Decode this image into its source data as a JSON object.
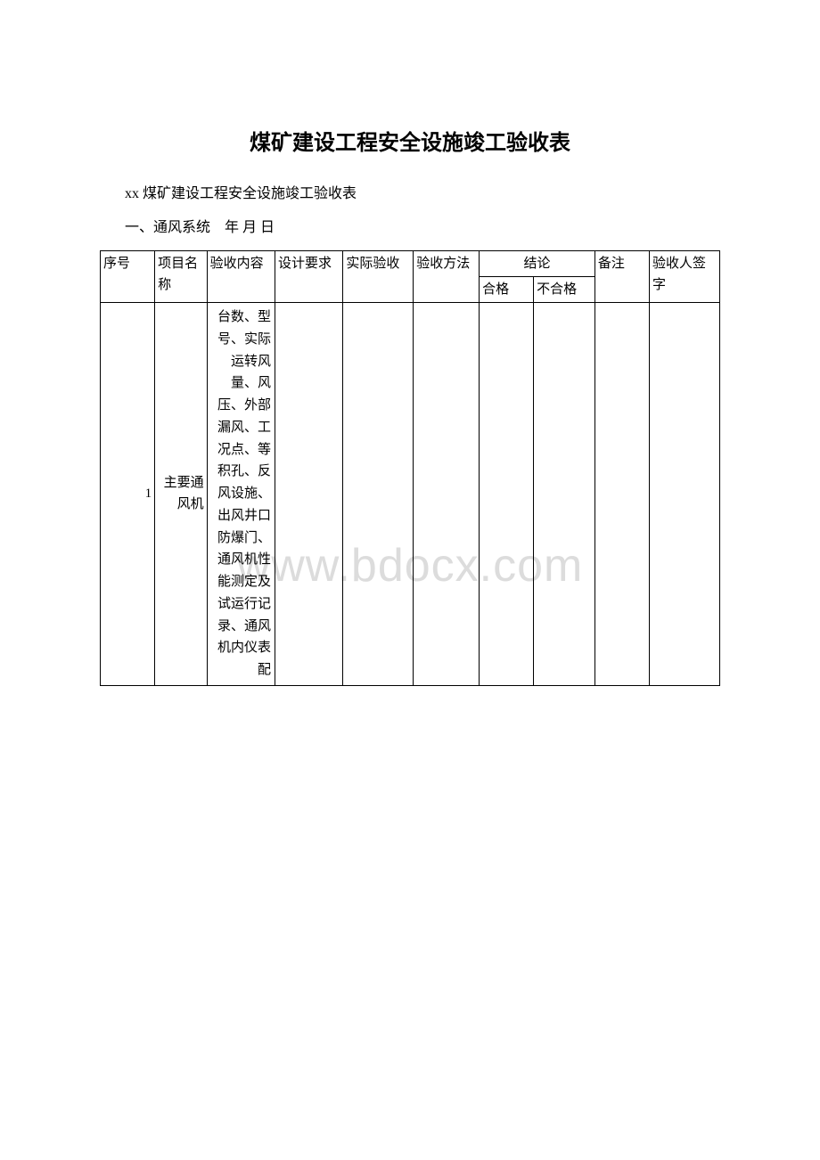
{
  "document": {
    "title": "煤矿建设工程安全设施竣工验收表",
    "subtitle": "xx 煤矿建设工程安全设施竣工验收表",
    "section_label": "一、通风系统　年 月 日",
    "watermark": "www.bdocx.com"
  },
  "table": {
    "headers": {
      "seq": "序号",
      "name": "项目名称",
      "content": "验收内容",
      "req": "设计要求",
      "actual": "实际验收",
      "method": "验收方法",
      "conclusion": "结论",
      "pass": "合格",
      "fail": "不合格",
      "note": "备注",
      "sign": "验收人签字"
    },
    "rows": [
      {
        "seq": "1",
        "name": "主要通风机",
        "content": "台数、型号、实际运转风量、风压、外部漏风、工况点、等积孔、反风设施、出风井口防爆门、通风机性能测定及试运行记录、通风机内仪表配",
        "req": "",
        "actual": "",
        "method": "",
        "pass": "",
        "fail": "",
        "note": "",
        "sign": ""
      }
    ]
  },
  "styles": {
    "background_color": "#ffffff",
    "text_color": "#000000",
    "border_color": "#000000",
    "watermark_color": "#dcdcdc",
    "title_fontsize": 24,
    "body_fontsize": 15
  }
}
